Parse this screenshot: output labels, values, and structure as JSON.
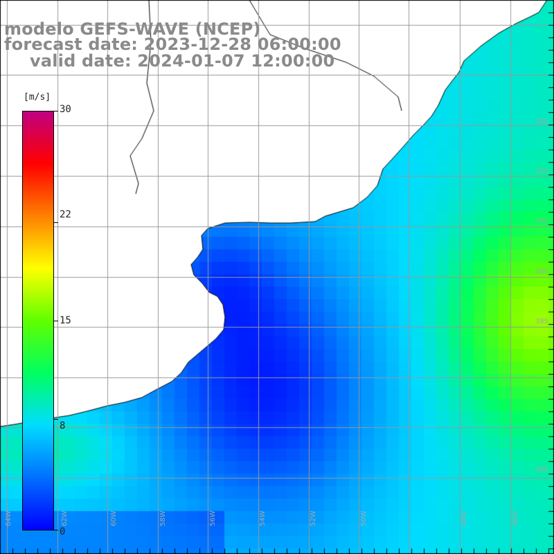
{
  "title": {
    "model": "modelo GEFS-WAVE (NCEP)",
    "forecast_date": "forecast date: 2023-12-28 06:00:00",
    "valid_date": "valid date: 2024-01-07 12:00:00"
  },
  "colorbar": {
    "unit": "[m/s]",
    "ticks": [
      {
        "value": 30,
        "label": "30"
      },
      {
        "value": 22,
        "label": "22"
      },
      {
        "value": 15,
        "label": "15"
      },
      {
        "value": 8,
        "label": "8"
      },
      {
        "value": 0,
        "label": "0"
      }
    ],
    "colors": [
      "#0000ff",
      "#0070ff",
      "#00dcff",
      "#00ff60",
      "#60ff00",
      "#ffff00",
      "#ff8000",
      "#ff0000",
      "#c00080"
    ]
  },
  "map": {
    "variable": "wind speed and direction",
    "lat_labels": [
      "30S",
      "32S",
      "34S",
      "36S",
      "38S",
      "40S"
    ],
    "lon_labels": [
      "64W",
      "62W",
      "60W",
      "58W",
      "56W",
      "54W",
      "52W",
      "50W",
      "48W",
      "46W"
    ],
    "colors": {
      "land": "#ffffff",
      "coast": "#000000",
      "grid": "#999999",
      "arrow": "#ffffff"
    }
  }
}
